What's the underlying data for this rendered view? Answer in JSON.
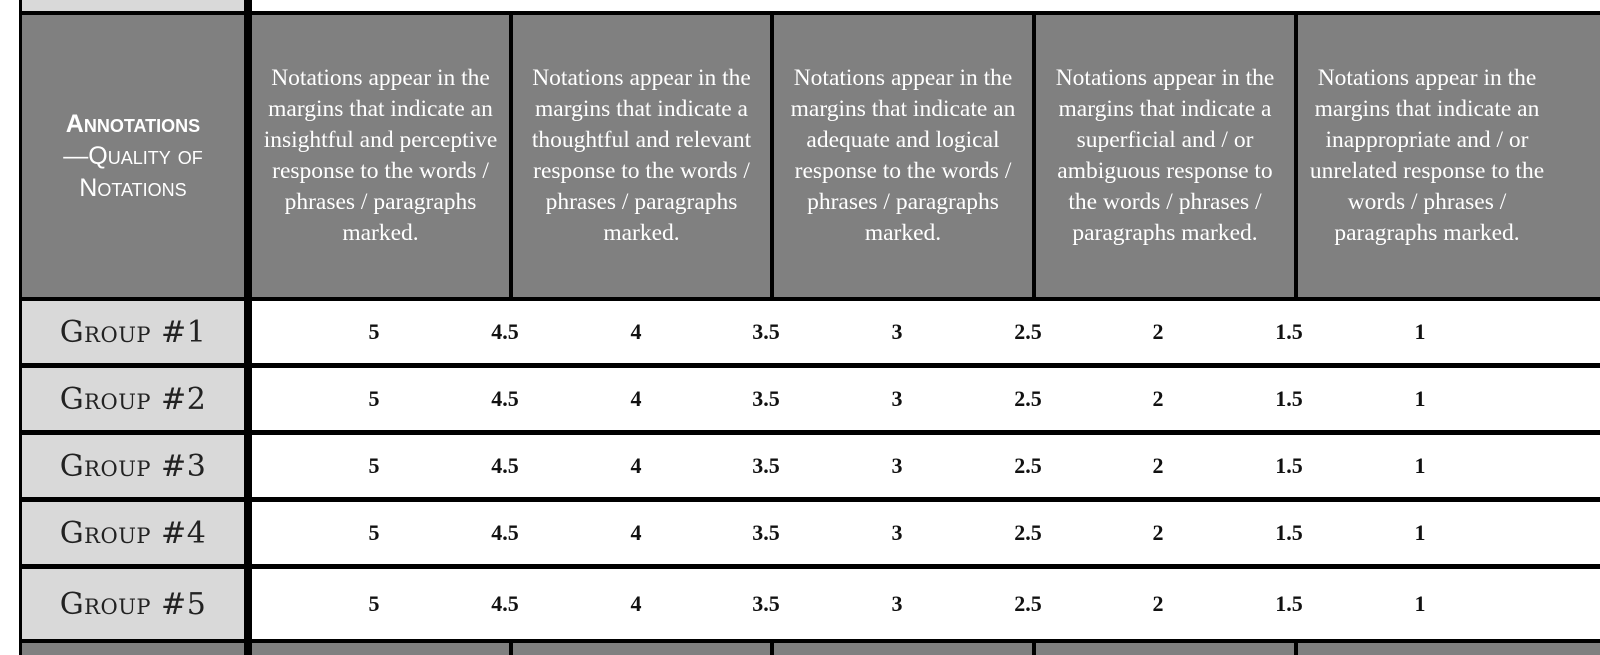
{
  "header": {
    "row_label_line1": "Annotations",
    "row_label_line2": "—Quality of Notations",
    "columns": [
      "Notations appear in the margins that indicate an insightful and perceptive response to the words / phrases / paragraphs marked.",
      "Notations appear in the margins that indicate a thoughtful and relevant response to the words / phrases / paragraphs marked.",
      "Notations appear in the margins that indicate an adequate and logical response to the words / phrases / paragraphs marked.",
      "Notations appear in the margins that indicate a superficial and / or ambiguous response to the words / phrases / paragraphs marked.",
      "Notations appear in the margins that indicate an inappropriate and / or unrelated response to the words / phrases / paragraphs marked."
    ]
  },
  "rows": [
    {
      "label": "Group #1",
      "scores": [
        "5",
        "4.5",
        "4",
        "3.5",
        "3",
        "2.5",
        "2",
        "1.5",
        "1"
      ]
    },
    {
      "label": "Group #2",
      "scores": [
        "5",
        "4.5",
        "4",
        "3.5",
        "3",
        "2.5",
        "2",
        "1.5",
        "1"
      ]
    },
    {
      "label": "Group #3",
      "scores": [
        "5",
        "4.5",
        "4",
        "3.5",
        "3",
        "2.5",
        "2",
        "1.5",
        "1"
      ]
    },
    {
      "label": "Group #4",
      "scores": [
        "5",
        "4.5",
        "4",
        "3.5",
        "3",
        "2.5",
        "2",
        "1.5",
        "1"
      ]
    },
    {
      "label": "Group #5",
      "scores": [
        "5",
        "4.5",
        "4",
        "3.5",
        "3",
        "2.5",
        "2",
        "1.5",
        "1"
      ]
    }
  ]
}
